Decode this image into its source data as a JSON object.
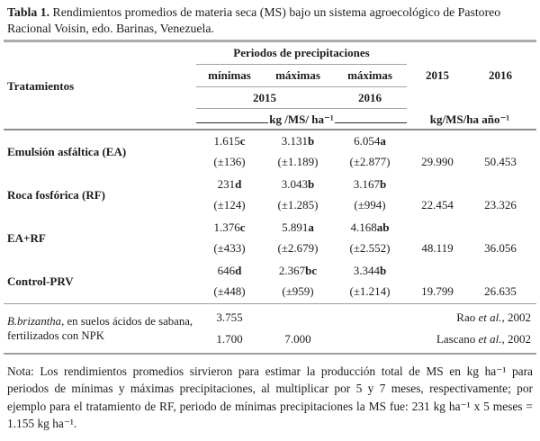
{
  "title": {
    "label": "Tabla 1.",
    "text": " Rendimientos promedios de materia seca (MS) bajo un sistema agroecológico de Pastoreo Racional Voisin, edo. Barinas, Venezuela."
  },
  "header": {
    "treatments": "Tratamientos",
    "periods_group": "Periodos de precipitaciones",
    "subcols": [
      "mínimas",
      "máximas",
      "máximas"
    ],
    "period_years": [
      "2015",
      "2016"
    ],
    "annual_years": [
      "2015",
      "2016"
    ],
    "units_precip": "kg /MS/ ha⁻¹",
    "units_annual": "kg/MS/ha año⁻¹"
  },
  "rows": [
    {
      "label": "Emulsión asfáltica (EA)",
      "cells": [
        {
          "v": "1.615",
          "sig": "c",
          "sd": "(±136)"
        },
        {
          "v": "3.131",
          "sig": "b",
          "sd": "(±1.189)"
        },
        {
          "v": "6.054",
          "sig": "a",
          "sd": "(±2.877)"
        }
      ],
      "annual": [
        "29.990",
        "50.453"
      ]
    },
    {
      "label": "Roca fosfórica (RF)",
      "cells": [
        {
          "v": "231",
          "sig": "d",
          "sd": "(±124)"
        },
        {
          "v": "3.043",
          "sig": "b",
          "sd": "(±1.285)"
        },
        {
          "v": "3.167",
          "sig": "b",
          "sd": "(±994)"
        }
      ],
      "annual": [
        "22.454",
        "23.326"
      ]
    },
    {
      "label": "EA+RF",
      "cells": [
        {
          "v": "1.376",
          "sig": "c",
          "sd": "(±433)"
        },
        {
          "v": "5.891",
          "sig": "a",
          "sd": "(±2.679)"
        },
        {
          "v": "4.168",
          "sig": "ab",
          "sd": "(±2.552)"
        }
      ],
      "annual": [
        "48.119",
        "36.056"
      ]
    },
    {
      "label": "Control-PRV",
      "cells": [
        {
          "v": "646",
          "sig": "d",
          "sd": "(±448)"
        },
        {
          "v": "2.367",
          "sig": "bc",
          "sd": "(±959)"
        },
        {
          "v": "3.344",
          "sig": "b",
          "sd": "(±1.214)"
        }
      ],
      "annual": [
        "19.799",
        "26.635"
      ]
    }
  ],
  "reference": {
    "label": {
      "italic": "B.brizantha,",
      "rest": " en suelos ácidos de sabana, fertilizados con NPK"
    },
    "rows": [
      {
        "minimas": "3.755",
        "maximas_2015": "",
        "citation": {
          "pre": "Rao ",
          "italic": "et al.",
          "post": ", 2002"
        }
      },
      {
        "minimas": "1.700",
        "maximas_2015": "7.000",
        "citation": {
          "pre": "Lascano ",
          "italic": "et al.",
          "post": ", 2002"
        }
      }
    ]
  },
  "note": "Nota: Los rendimientos promedios sirvieron para estimar la producción total de MS en kg ha⁻¹ para periodos de mínimas y máximas precipitaciones, al multiplicar por 5 y 7 meses, respectivamente; por ejemplo para el tratamiento de RF, periodo de mínimas precipitaciones la MS fue: 231 kg ha⁻¹ x 5 meses = 1.155 kg ha⁻¹.",
  "colors": {
    "background": "#ffffff",
    "text": "#1c1c1c",
    "rule_gray": "#9e9e9e"
  }
}
